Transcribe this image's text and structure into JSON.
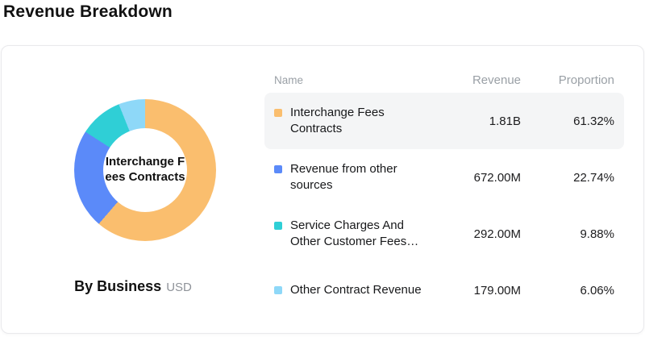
{
  "page_title": "Revenue Breakdown",
  "card": {
    "footer_label": "By Business",
    "footer_currency": "USD"
  },
  "table": {
    "headers": [
      "Name",
      "Revenue",
      "Proportion"
    ],
    "rows": [
      {
        "name": "Interchange Fees Contracts",
        "revenue": "1.81B",
        "proportion": "61.32%"
      },
      {
        "name": "Revenue from other sources",
        "revenue": "672.00M",
        "proportion": "22.74%"
      },
      {
        "name": "Service Charges And Other Customer Fees…",
        "revenue": "292.00M",
        "proportion": "9.88%"
      },
      {
        "name": "Other Contract Revenue",
        "revenue": "179.00M",
        "proportion": "6.06%"
      }
    ]
  },
  "chart_data": {
    "type": "pie",
    "donut": true,
    "title": "Revenue Breakdown",
    "subtitle": "By Business",
    "unit": "USD",
    "center_label": "Interchange Fees Contracts",
    "categories": [
      "Interchange Fees Contracts",
      "Revenue from other sources",
      "Service Charges And Other Customer Fees",
      "Other Contract Revenue"
    ],
    "values": [
      61.32,
      22.74,
      9.88,
      6.06
    ],
    "value_labels": [
      "1.81B",
      "672.00M",
      "292.00M",
      "179.00M"
    ],
    "colors": [
      "#FABE6E",
      "#5B8AF9",
      "#2FCFD6",
      "#8ED8F8"
    ],
    "legend_position": "right",
    "start_angle_deg": 0,
    "direction": "clockwise"
  }
}
